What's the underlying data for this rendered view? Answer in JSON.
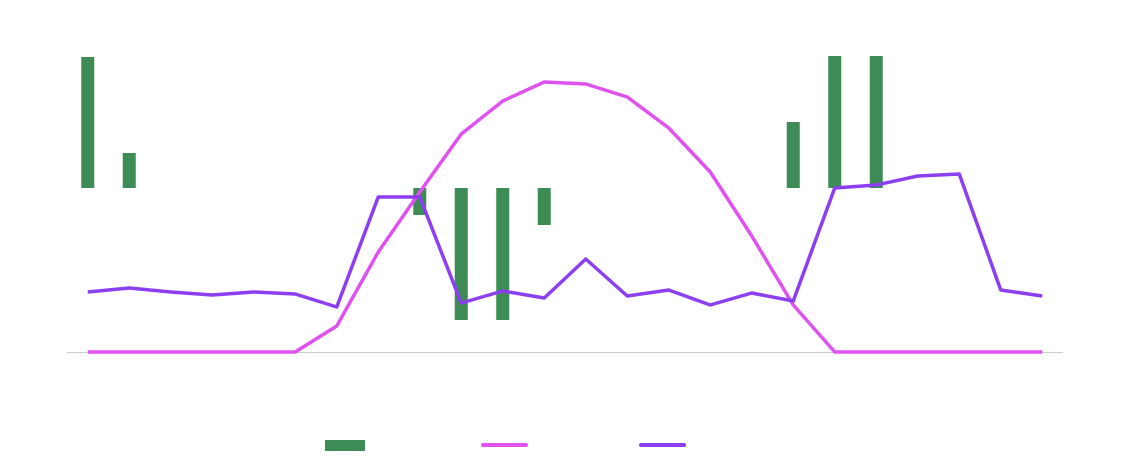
{
  "chart_data": {
    "type": "combo",
    "categories": [
      null,
      null,
      null,
      null,
      null,
      null,
      null,
      null,
      null,
      null,
      null,
      null,
      null,
      null,
      null,
      null,
      null,
      null,
      null,
      null,
      null,
      null,
      null,
      null
    ],
    "ylim": [
      0,
      300
    ],
    "y2lim": [
      -164,
      136
    ],
    "series": [
      {
        "type": "bar",
        "axis": "y2",
        "color": "#3d8b55",
        "values": [
          131,
          35,
          0,
          0,
          0,
          0,
          0,
          0,
          -27,
          -132,
          -132,
          -37,
          0,
          0,
          0,
          0,
          0,
          66,
          132,
          132,
          0,
          0,
          0,
          0
        ]
      },
      {
        "type": "line",
        "color": "#e052f0",
        "values": [
          0,
          0,
          0,
          0,
          0,
          0,
          26,
          100,
          160,
          218,
          251,
          270,
          268,
          255,
          224,
          180,
          116,
          47,
          0,
          0,
          0,
          0,
          0,
          0
        ]
      },
      {
        "type": "line",
        "color": "#8c3ff0",
        "values": [
          60,
          64,
          60,
          57,
          60,
          58,
          45,
          155,
          155,
          49,
          61,
          54,
          93,
          56,
          62,
          47,
          59,
          51,
          164,
          167,
          176,
          178,
          62,
          56
        ]
      }
    ]
  }
}
